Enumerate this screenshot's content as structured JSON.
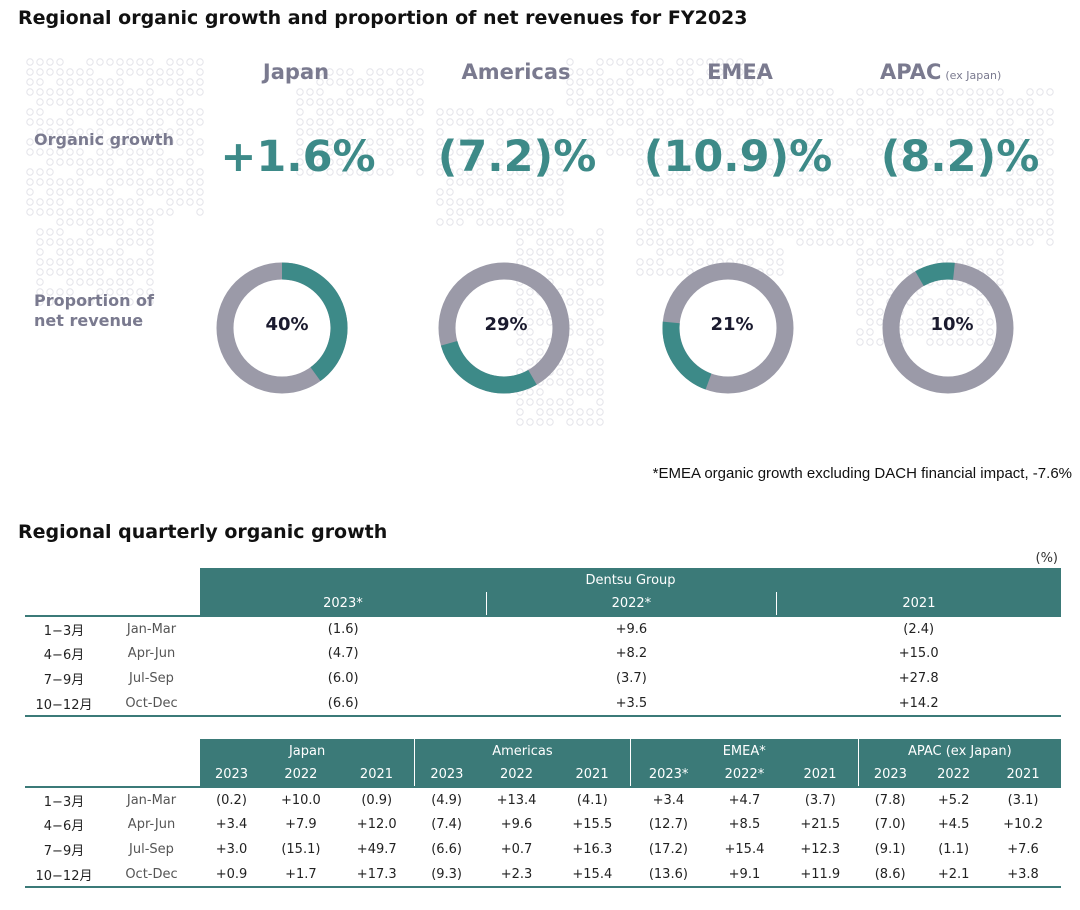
{
  "title": "Regional organic growth and proportion of net revenues for FY2023",
  "row_labels": {
    "growth": "Organic growth",
    "proportion_line1": "Proportion of",
    "proportion_line2": "net revenue"
  },
  "regions": [
    {
      "name": "Japan",
      "sub": "",
      "growth": "+1.6%",
      "share_label": "40%"
    },
    {
      "name": "Americas",
      "sub": "",
      "growth": "(7.2)%",
      "share_label": "29%"
    },
    {
      "name": "EMEA",
      "sub": "",
      "growth": "(10.9)%",
      "share_label": "21%"
    },
    {
      "name": "APAC",
      "sub": "(ex Japan)",
      "growth": "(8.2)%",
      "share_label": "10%"
    }
  ],
  "footnote": "*EMEA organic growth excluding DACH financial impact, -7.6%",
  "section2_title": "Regional quarterly organic growth",
  "unit": "(%)",
  "colors": {
    "teal": "#3d8a88",
    "gray": "#9b9aa8",
    "header": "#3b7a78",
    "label": "#7a7a8f"
  },
  "chart_data": [
    {
      "type": "pie",
      "categories": [
        "Japan",
        "Americas",
        "EMEA",
        "APAC (ex Japan)"
      ],
      "values": [
        40,
        29,
        21,
        10
      ],
      "growth": [
        1.6,
        -7.2,
        -10.9,
        -8.2
      ]
    },
    {
      "type": "table",
      "group": "Dentsu Group",
      "columns": [
        "2023*",
        "2022*",
        "2021"
      ],
      "rows": [
        {
          "jp": "1−3月",
          "en": "Jan-Mar",
          "values": [
            "(1.6)",
            "+9.6",
            "(2.4)"
          ]
        },
        {
          "jp": "4−6月",
          "en": "Apr-Jun",
          "values": [
            "(4.7)",
            "+8.2",
            "+15.0"
          ]
        },
        {
          "jp": "7−9月",
          "en": "Jul-Sep",
          "values": [
            "(6.0)",
            "(3.7)",
            "+27.8"
          ]
        },
        {
          "jp": "10−12月",
          "en": "Oct-Dec",
          "values": [
            "(6.6)",
            "+3.5",
            "+14.2"
          ]
        }
      ]
    },
    {
      "type": "table",
      "groups": [
        {
          "name": "Japan",
          "columns": [
            "2023",
            "2022",
            "2021"
          ]
        },
        {
          "name": "Americas",
          "columns": [
            "2023",
            "2022",
            "2021"
          ]
        },
        {
          "name": "EMEA*",
          "columns": [
            "2023*",
            "2022*",
            "2021"
          ]
        },
        {
          "name": "APAC (ex Japan)",
          "columns": [
            "2023",
            "2022",
            "2021"
          ]
        }
      ],
      "rows": [
        {
          "jp": "1−3月",
          "en": "Jan-Mar",
          "values": [
            "(0.2)",
            "+10.0",
            "(0.9)",
            "(4.9)",
            "+13.4",
            "(4.1)",
            "+3.4",
            "+4.7",
            "(3.7)",
            "(7.8)",
            "+5.2",
            "(3.1)"
          ]
        },
        {
          "jp": "4−6月",
          "en": "Apr-Jun",
          "values": [
            "+3.4",
            "+7.9",
            "+12.0",
            "(7.4)",
            "+9.6",
            "+15.5",
            "(12.7)",
            "+8.5",
            "+21.5",
            "(7.0)",
            "+4.5",
            "+10.2"
          ]
        },
        {
          "jp": "7−9月",
          "en": "Jul-Sep",
          "values": [
            "+3.0",
            "(15.1)",
            "+49.7",
            "(6.6)",
            "+0.7",
            "+16.3",
            "(17.2)",
            "+15.4",
            "+12.3",
            "(9.1)",
            "(1.1)",
            "+7.6"
          ]
        },
        {
          "jp": "10−12月",
          "en": "Oct-Dec",
          "values": [
            "+0.9",
            "+1.7",
            "+17.3",
            "(9.3)",
            "+2.3",
            "+15.4",
            "(13.6)",
            "+9.1",
            "+11.9",
            "(8.6)",
            "+2.1",
            "+3.8"
          ]
        }
      ]
    }
  ]
}
